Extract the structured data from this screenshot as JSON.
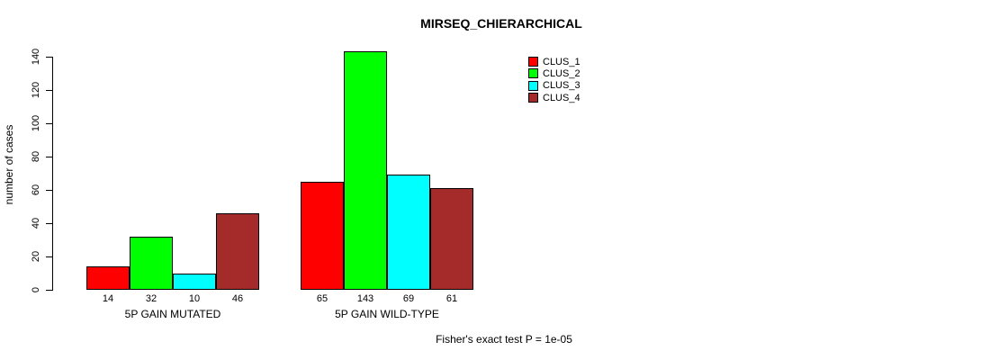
{
  "chart_data": {
    "type": "bar",
    "title": "MIRSEQ_CHIERARCHICAL",
    "ylabel": "number of cases",
    "xlabel": "",
    "categories": [
      "5P GAIN MUTATED",
      "5P GAIN WILD-TYPE"
    ],
    "series": [
      {
        "name": "CLUS_1",
        "color": "#FF0000",
        "values": [
          14,
          65
        ]
      },
      {
        "name": "CLUS_2",
        "color": "#00FF00",
        "values": [
          32,
          143
        ]
      },
      {
        "name": "CLUS_3",
        "color": "#00FFFF",
        "values": [
          10,
          69
        ]
      },
      {
        "name": "CLUS_4",
        "color": "#A52A2A",
        "values": [
          46,
          61
        ]
      }
    ],
    "yticks": [
      0,
      20,
      40,
      60,
      80,
      100,
      120,
      140
    ],
    "ylim": [
      0,
      140
    ],
    "grid": false,
    "bar_value_labels": true,
    "legend_position": "top-right",
    "annotation": "Fisher's exact test P = 1e-05"
  }
}
